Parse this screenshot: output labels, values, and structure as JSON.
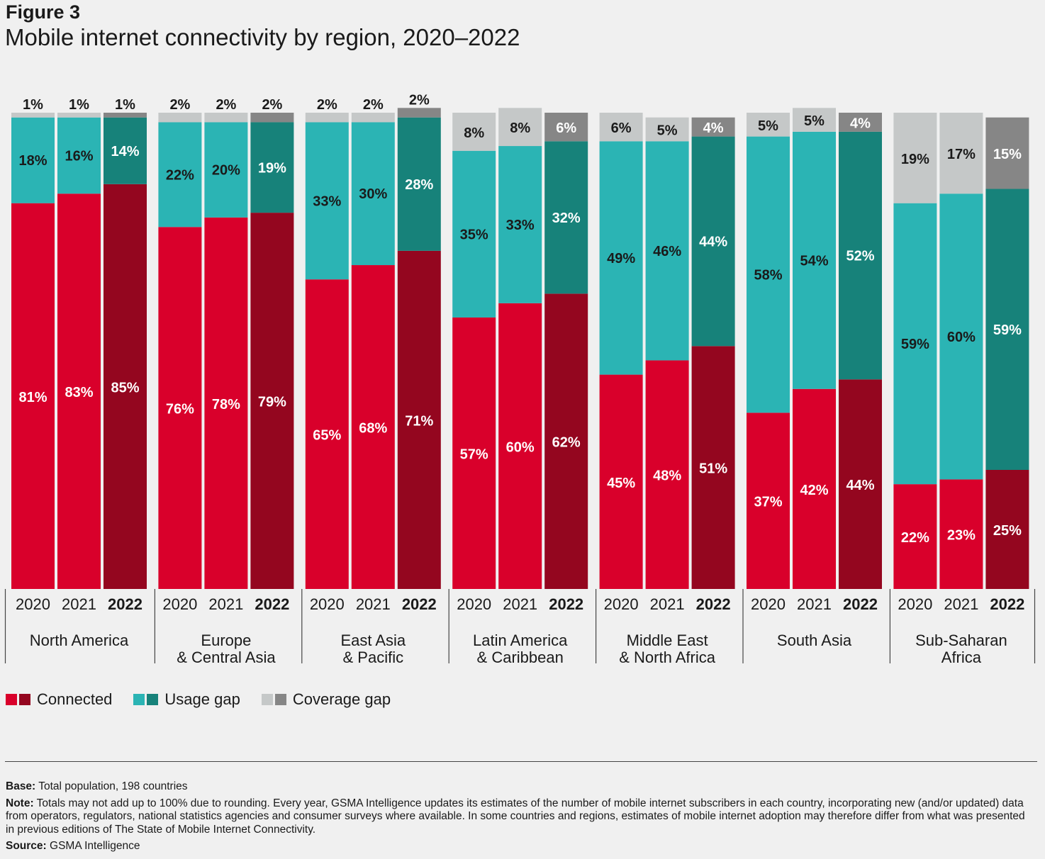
{
  "header": {
    "figure_label": "Figure 3",
    "title": "Mobile internet connectivity by region, 2020–2022"
  },
  "chart_data": {
    "type": "bar",
    "stacked": true,
    "ylim": [
      0,
      100
    ],
    "legend_position": "bottom-left",
    "categories": [
      "North America",
      "Europe & Central Asia",
      "East Asia & Pacific",
      "Latin America & Caribbean",
      "Middle East & North Africa",
      "South Asia",
      "Sub-Saharan Africa"
    ],
    "region_labels": [
      [
        "North America"
      ],
      [
        "Europe",
        "& Central Asia"
      ],
      [
        "East Asia",
        "& Pacific"
      ],
      [
        "Latin America",
        "& Caribbean"
      ],
      [
        "Middle East",
        "& North Africa"
      ],
      [
        "South Asia"
      ],
      [
        "Sub-Saharan",
        "Africa"
      ]
    ],
    "years": [
      "2020",
      "2021",
      "2022"
    ],
    "highlight_year": "2022",
    "series": [
      {
        "name": "Connected",
        "colors": [
          "#d9002b",
          "#94061f"
        ],
        "values": [
          [
            81,
            83,
            85
          ],
          [
            76,
            78,
            79
          ],
          [
            65,
            68,
            71
          ],
          [
            57,
            60,
            62
          ],
          [
            45,
            48,
            51
          ],
          [
            37,
            42,
            44
          ],
          [
            22,
            23,
            25
          ]
        ]
      },
      {
        "name": "Usage gap",
        "colors": [
          "#2bb4b4",
          "#17827a"
        ],
        "values": [
          [
            18,
            16,
            14
          ],
          [
            22,
            20,
            19
          ],
          [
            33,
            30,
            28
          ],
          [
            35,
            33,
            32
          ],
          [
            49,
            46,
            44
          ],
          [
            58,
            54,
            52
          ],
          [
            59,
            60,
            59
          ]
        ]
      },
      {
        "name": "Coverage gap",
        "colors": [
          "#c5c8c8",
          "#868686"
        ],
        "values": [
          [
            1,
            1,
            1
          ],
          [
            2,
            2,
            2
          ],
          [
            2,
            2,
            2
          ],
          [
            8,
            8,
            6
          ],
          [
            6,
            5,
            4
          ],
          [
            5,
            5,
            4
          ],
          [
            19,
            17,
            15
          ]
        ]
      }
    ]
  },
  "legend": {
    "items": [
      {
        "label": "Connected",
        "colors": [
          "#d9002b",
          "#94061f"
        ]
      },
      {
        "label": "Usage gap",
        "colors": [
          "#2bb4b4",
          "#17827a"
        ]
      },
      {
        "label": "Coverage gap",
        "colors": [
          "#c5c8c8",
          "#868686"
        ]
      }
    ]
  },
  "notes": {
    "base_label": "Base:",
    "base_text": "Total population, 198 countries",
    "note_label": "Note:",
    "note_text": "Totals may not add up to 100% due to rounding. Every year, GSMA Intelligence updates its estimates of the number of mobile internet subscribers in each country, incorporating new (and/or updated) data from operators, regulators, national statistics agencies and consumer surveys where available. In some countries and regions, estimates of mobile internet adoption may therefore differ from what was presented in previous editions of The State of Mobile Internet Connectivity.",
    "source_label": "Source:",
    "source_text": "GSMA Intelligence"
  }
}
